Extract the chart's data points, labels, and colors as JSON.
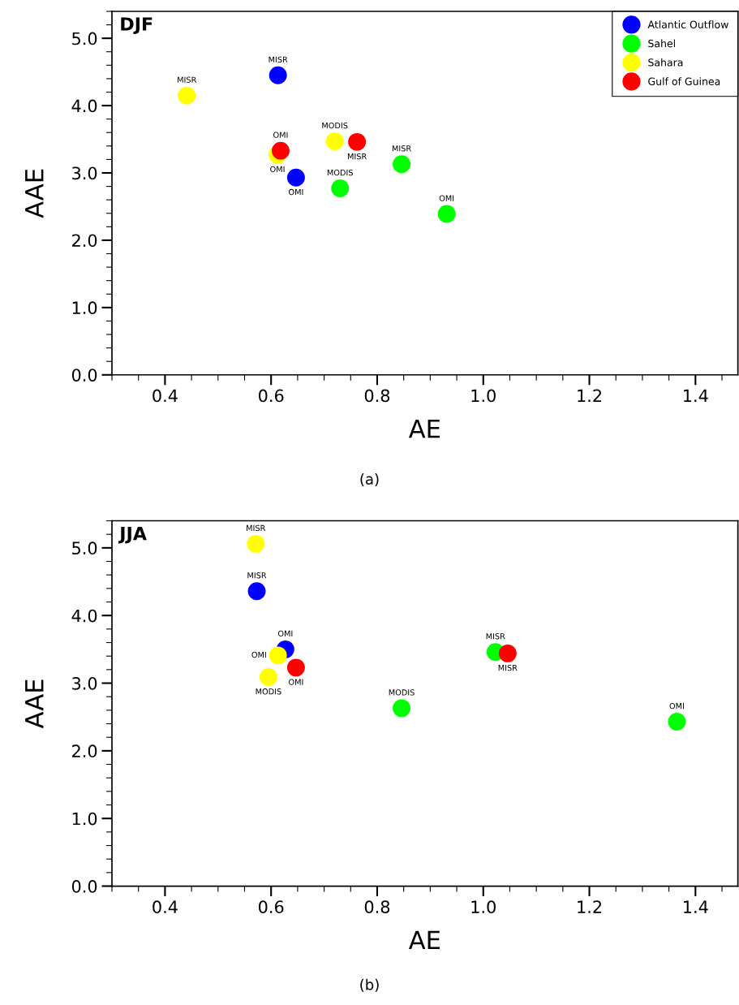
{
  "chart_data": [
    {
      "type": "scatter",
      "title": "DJF",
      "xlabel": "AE",
      "ylabel": "AAE",
      "annotations": [
        "(a)"
      ],
      "legend": "top right",
      "grid": false,
      "marker": "circle",
      "xlim": [
        0.3,
        1.48
      ],
      "ylim": [
        0,
        5.4
      ],
      "xticks": [
        0.4,
        0.6,
        0.8,
        {
          "value": 1,
          "label": "1.0"
        },
        1.2,
        1.4
      ],
      "yticks": [
        {
          "value": 0,
          "label": "0.0"
        },
        {
          "value": 1,
          "label": "1.0"
        },
        {
          "value": 2,
          "label": "2.0"
        },
        {
          "value": 3,
          "label": "3.0"
        },
        {
          "value": 4,
          "label": "4.0"
        },
        {
          "value": 5,
          "label": "5.0"
        }
      ],
      "series": [
        {
          "name": "Atlantic Outflow",
          "color": "#0000ff",
          "x": [
            0.613,
            0.647
          ],
          "values": [
            4.45,
            2.93
          ],
          "value_labels": [
            "MISR",
            "OMI"
          ]
        },
        {
          "name": "Sahel",
          "color": "#00ff00",
          "x": [
            0.846,
            0.73,
            0.931
          ],
          "values": [
            3.13,
            2.77,
            2.39
          ],
          "value_labels": [
            "MISR",
            "MODIS",
            "OMI"
          ]
        },
        {
          "name": "Sahara",
          "color": "#ffff00",
          "x": [
            0.441,
            0.72,
            0.612
          ],
          "values": [
            4.15,
            3.47,
            3.27
          ],
          "value_labels": [
            "MISR",
            "MODIS",
            "OMI"
          ]
        },
        {
          "name": "Gulf of Guinea",
          "color": "#ff0000",
          "x": [
            0.762,
            0.618
          ],
          "values": [
            3.46,
            3.33
          ],
          "value_labels": [
            "MISR",
            "OMI"
          ]
        }
      ]
    },
    {
      "type": "scatter",
      "title": "JJA",
      "xlabel": "AE",
      "ylabel": "AAE",
      "annotations": [
        "(b)"
      ],
      "grid": false,
      "marker": "circle",
      "xlim": [
        0.3,
        1.48
      ],
      "ylim": [
        0,
        5.4
      ],
      "xticks": [
        0.4,
        0.6,
        0.8,
        {
          "value": 1,
          "label": "1.0"
        },
        1.2,
        1.4
      ],
      "yticks": [
        {
          "value": 0,
          "label": "0.0"
        },
        {
          "value": 1,
          "label": "1.0"
        },
        {
          "value": 2,
          "label": "2.0"
        },
        {
          "value": 3,
          "label": "3.0"
        },
        {
          "value": 4,
          "label": "4.0"
        },
        {
          "value": 5,
          "label": "5.0"
        }
      ],
      "series": [
        {
          "color": "#0000ff",
          "x": [
            0.573,
            0.627
          ],
          "values": [
            4.36,
            3.5
          ],
          "value_labels": [
            "MISR",
            "OMI"
          ]
        },
        {
          "color": "#00ff00",
          "x": [
            1.023,
            0.846,
            1.365
          ],
          "values": [
            3.46,
            2.63,
            2.43
          ],
          "value_labels": [
            "MISR",
            "MODIS",
            "OMI"
          ]
        },
        {
          "color": "#ffff00",
          "x": [
            0.571,
            0.613,
            0.595
          ],
          "values": [
            5.06,
            3.41,
            3.09
          ],
          "value_labels": [
            "MISR",
            "OMI",
            "MODIS"
          ]
        },
        {
          "color": "#ff0000",
          "x": [
            1.046,
            0.647
          ],
          "values": [
            3.44,
            3.23
          ],
          "value_labels": [
            "MISR",
            "OMI"
          ]
        }
      ]
    }
  ]
}
